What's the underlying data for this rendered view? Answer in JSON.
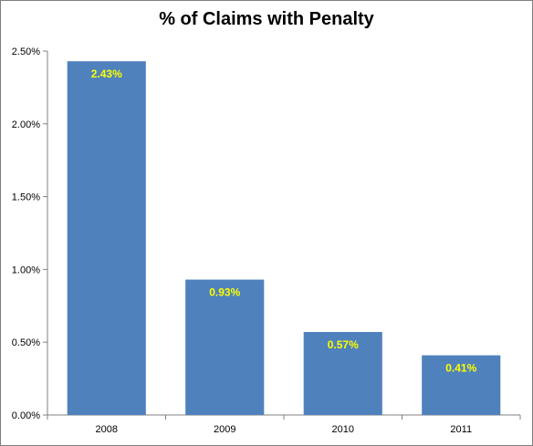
{
  "chart_data": {
    "type": "bar",
    "title": "% of Claims with Penalty",
    "xlabel": "",
    "ylabel": "",
    "categories": [
      "2008",
      "2009",
      "2010",
      "2011"
    ],
    "values": [
      2.43,
      0.93,
      0.57,
      0.41
    ],
    "data_labels": [
      "2.43%",
      "0.93%",
      "0.57%",
      "0.41%"
    ],
    "ylim": [
      0,
      2.5
    ],
    "y_ticks": [
      0,
      0.5,
      1.0,
      1.5,
      2.0,
      2.5
    ],
    "y_tick_labels": [
      "0.00%",
      "0.50%",
      "1.00%",
      "1.50%",
      "2.00%",
      "2.50%"
    ],
    "grid": false,
    "legend": "none",
    "bar_color": "#4f81bd",
    "label_color": "#ffff00"
  }
}
